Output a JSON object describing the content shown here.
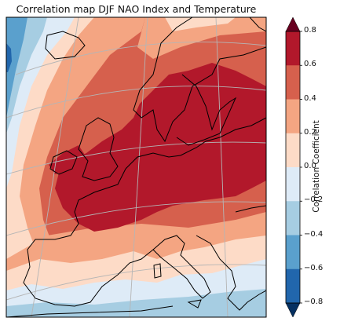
{
  "title": "Correlation map DJF NAO Index and Temperature",
  "colorbar": {
    "label": "Correlation Coefficient",
    "ticks": [
      "0.8",
      "0.6",
      "0.4",
      "0.2",
      "0.0",
      "−0.2",
      "−0.4",
      "−0.6",
      "−0.8"
    ],
    "levels": [
      {
        "range": "0.6 to 0.8",
        "color": "#b2182b"
      },
      {
        "range": "0.4 to 0.6",
        "color": "#d6604d"
      },
      {
        "range": "0.2 to 0.4",
        "color": "#f4a582"
      },
      {
        "range": "0.0 to 0.2",
        "color": "#fddbc7"
      },
      {
        "range": "-0.2 to 0.0",
        "color": "#deebf7"
      },
      {
        "range": "-0.4 to -0.2",
        "color": "#a6cde2"
      },
      {
        "range": "-0.6 to -0.4",
        "color": "#5aa0cd"
      },
      {
        "range": "-0.8 to -0.6",
        "color": "#2166ac"
      }
    ],
    "over_color": "#67001f",
    "under_color": "#053061",
    "extend": "both"
  },
  "map": {
    "projection": "conic",
    "region": "Europe",
    "gridlines": true,
    "coastlines": true
  }
}
